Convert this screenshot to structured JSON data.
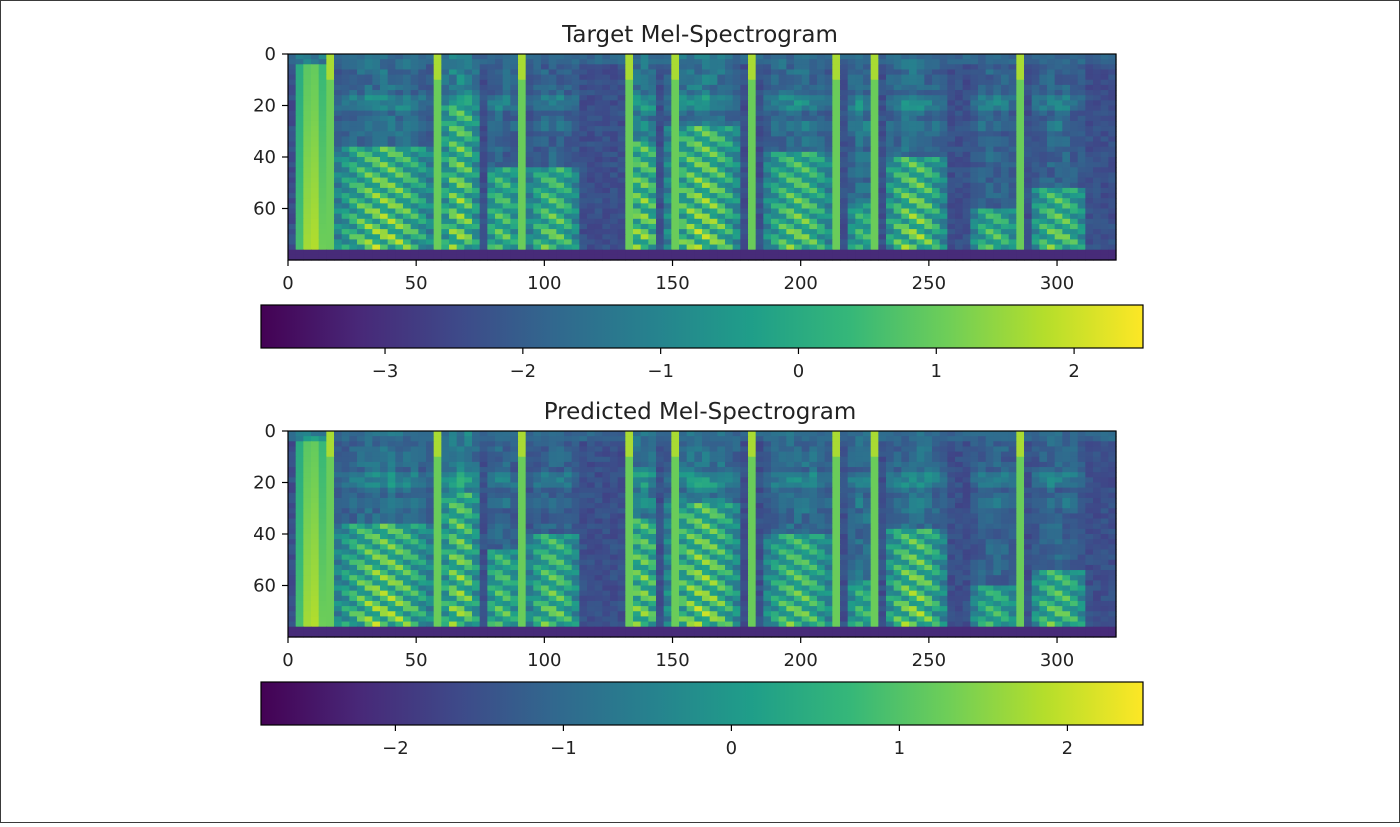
{
  "chart_data": [
    {
      "type": "heatmap",
      "title": "Target Mel-Spectrogram",
      "xlabel": "",
      "ylabel": "",
      "xlim": [
        0,
        323
      ],
      "ylim": [
        80,
        0
      ],
      "xticks": [
        0,
        50,
        100,
        150,
        200,
        250,
        300
      ],
      "yticks": [
        0,
        20,
        40,
        60
      ],
      "colormap": "viridis",
      "colorbar": {
        "orientation": "horizontal",
        "range": [
          -3.9,
          2.5
        ],
        "ticks": [
          -3,
          -2,
          -1,
          0,
          1,
          2
        ]
      },
      "segments": [
        {
          "x0": 3,
          "x1": 16,
          "low_from": 5,
          "peak": 0.9,
          "mid": 0.55,
          "harmonics": false
        },
        {
          "x0": 19,
          "x1": 56,
          "low_from": 36,
          "peak": 0.97,
          "mid": 0.45,
          "harmonics": true
        },
        {
          "x0": 60,
          "x1": 74,
          "low_from": 20,
          "peak": 0.95,
          "mid": 0.55,
          "harmonics": true
        },
        {
          "x0": 77,
          "x1": 90,
          "low_from": 44,
          "peak": 0.85,
          "mid": 0.4,
          "harmonics": true
        },
        {
          "x0": 94,
          "x1": 113,
          "low_from": 44,
          "peak": 0.88,
          "mid": 0.4,
          "harmonics": true
        },
        {
          "x0": 132,
          "x1": 145,
          "low_from": 34,
          "peak": 0.95,
          "mid": 0.5,
          "harmonics": true
        },
        {
          "x0": 148,
          "x1": 176,
          "low_from": 28,
          "peak": 0.97,
          "mid": 0.5,
          "harmonics": true
        },
        {
          "x0": 186,
          "x1": 212,
          "low_from": 38,
          "peak": 0.9,
          "mid": 0.45,
          "harmonics": true
        },
        {
          "x0": 219,
          "x1": 229,
          "low_from": 58,
          "peak": 0.8,
          "mid": 0.45,
          "harmonics": true
        },
        {
          "x0": 233,
          "x1": 256,
          "low_from": 40,
          "peak": 0.95,
          "mid": 0.45,
          "harmonics": true
        },
        {
          "x0": 267,
          "x1": 284,
          "low_from": 60,
          "peak": 0.85,
          "mid": 0.4,
          "harmonics": true
        },
        {
          "x0": 290,
          "x1": 311,
          "low_from": 52,
          "peak": 0.9,
          "mid": 0.4,
          "harmonics": true
        }
      ],
      "strikes": [
        16,
        57,
        90,
        133,
        150,
        181,
        215,
        230,
        285
      ]
    },
    {
      "type": "heatmap",
      "title": "Predicted Mel-Spectrogram",
      "xlabel": "",
      "ylabel": "",
      "xlim": [
        0,
        323
      ],
      "ylim": [
        80,
        0
      ],
      "xticks": [
        0,
        50,
        100,
        150,
        200,
        250,
        300
      ],
      "yticks": [
        0,
        20,
        40,
        60
      ],
      "colormap": "viridis",
      "colorbar": {
        "orientation": "horizontal",
        "range": [
          -2.8,
          2.45
        ],
        "ticks": [
          -2,
          -1,
          0,
          1,
          2
        ]
      },
      "segments": [
        {
          "x0": 3,
          "x1": 16,
          "low_from": 5,
          "peak": 0.9,
          "mid": 0.6,
          "harmonics": false
        },
        {
          "x0": 19,
          "x1": 56,
          "low_from": 36,
          "peak": 0.97,
          "mid": 0.45,
          "harmonics": true
        },
        {
          "x0": 60,
          "x1": 74,
          "low_from": 24,
          "peak": 0.95,
          "mid": 0.55,
          "harmonics": true
        },
        {
          "x0": 77,
          "x1": 90,
          "low_from": 46,
          "peak": 0.85,
          "mid": 0.4,
          "harmonics": true
        },
        {
          "x0": 94,
          "x1": 113,
          "low_from": 40,
          "peak": 0.88,
          "mid": 0.4,
          "harmonics": true
        },
        {
          "x0": 132,
          "x1": 145,
          "low_from": 34,
          "peak": 0.93,
          "mid": 0.5,
          "harmonics": true
        },
        {
          "x0": 148,
          "x1": 176,
          "low_from": 28,
          "peak": 0.97,
          "mid": 0.5,
          "harmonics": true
        },
        {
          "x0": 186,
          "x1": 212,
          "low_from": 40,
          "peak": 0.88,
          "mid": 0.45,
          "harmonics": true
        },
        {
          "x0": 219,
          "x1": 229,
          "low_from": 58,
          "peak": 0.8,
          "mid": 0.45,
          "harmonics": true
        },
        {
          "x0": 233,
          "x1": 256,
          "low_from": 38,
          "peak": 0.95,
          "mid": 0.45,
          "harmonics": true
        },
        {
          "x0": 267,
          "x1": 284,
          "low_from": 60,
          "peak": 0.8,
          "mid": 0.4,
          "harmonics": true
        },
        {
          "x0": 290,
          "x1": 311,
          "low_from": 54,
          "peak": 0.88,
          "mid": 0.4,
          "harmonics": true
        }
      ],
      "strikes": [
        16,
        57,
        90,
        133,
        150,
        181,
        215,
        230,
        285
      ]
    }
  ]
}
